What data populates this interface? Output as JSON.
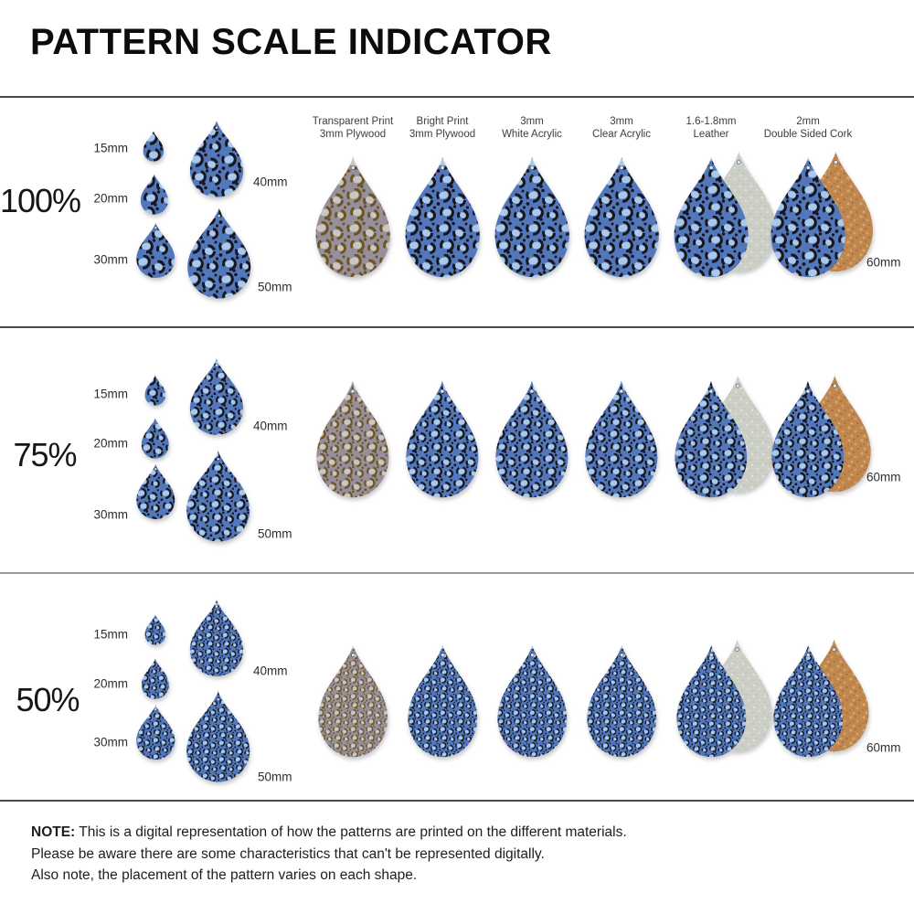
{
  "title": "PATTERN SCALE INDICATOR",
  "columns": [
    {
      "key": "transparent-plywood",
      "line1": "Transparent Print",
      "line2": "3mm Plywood"
    },
    {
      "key": "bright-plywood",
      "line1": "Bright Print",
      "line2": "3mm Plywood"
    },
    {
      "key": "white-acrylic",
      "line1": "3mm",
      "line2": "White Acrylic"
    },
    {
      "key": "clear-acrylic",
      "line1": "3mm",
      "line2": "Clear Acrylic"
    },
    {
      "key": "leather",
      "line1": "1.6-1.8mm",
      "line2": "Leather"
    },
    {
      "key": "cork",
      "line1": "2mm",
      "line2": "Double Sided Cork"
    }
  ],
  "rows": [
    {
      "scale_label": "100%",
      "scale_pct": 100,
      "size_labels": [
        "15mm",
        "20mm",
        "30mm",
        "40mm",
        "50mm"
      ],
      "right_size_label": "60mm"
    },
    {
      "scale_label": "75%",
      "scale_pct": 75,
      "size_labels": [
        "15mm",
        "20mm",
        "30mm",
        "40mm",
        "50mm"
      ],
      "right_size_label": "60mm"
    },
    {
      "scale_label": "50%",
      "scale_pct": 50,
      "size_labels": [
        "15mm",
        "20mm",
        "30mm",
        "40mm",
        "50mm"
      ],
      "right_size_label": "60mm"
    }
  ],
  "note": {
    "label": "NOTE:",
    "line1": "This is a digital representation of how the patterns are printed on the different materials.",
    "line2": "Please be aware there are some characteristics that can't be represented digitally.",
    "line3": "Also note, the placement of the pattern varies on each shape."
  },
  "colors": {
    "pattern_blue_base": "#5277bb",
    "pattern_blue_accent": "#a9c8ea",
    "pattern_blue_spot": "#17171d",
    "pattern_wood_base": "#97909c",
    "pattern_wood_accent": "#cbc6bf",
    "pattern_wood_spot": "#6d5523",
    "leather_back": "#cccfc5",
    "cork_back": "#c08850",
    "divider_dark": "#4a4a4a",
    "divider_light": "#9b9b9b"
  }
}
